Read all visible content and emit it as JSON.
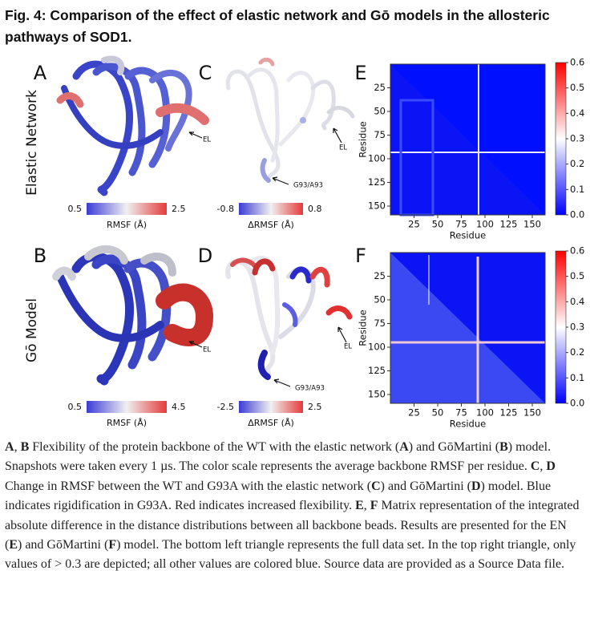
{
  "title": "Fig. 4: Comparison of the effect of elastic network and Gō models in the allosteric pathways of SOD1.",
  "row_labels": [
    "Elastic Network",
    "Gō Model"
  ],
  "panels": [
    {
      "letter": "A",
      "annotation": "EL",
      "colorbar": {
        "min": "0.5",
        "max": "2.5",
        "label": "RMSF (Å)"
      }
    },
    {
      "letter": "C",
      "annotation": "EL",
      "site": "G93/A93",
      "colorbar": {
        "min": "-0.8",
        "max": "0.8",
        "label": "ΔRMSF (Å)"
      }
    },
    {
      "letter": "B",
      "annotation": "EL",
      "colorbar": {
        "min": "0.5",
        "max": "4.5",
        "label": "RMSF (Å)"
      }
    },
    {
      "letter": "D",
      "annotation": "EL",
      "site": "G93/A93",
      "colorbar": {
        "min": "-2.5",
        "max": "2.5",
        "label": "ΔRMSF (Å)"
      }
    }
  ],
  "heatmaps": [
    {
      "letter": "E",
      "xlabel": "Residue",
      "ylabel": "Residue",
      "xticks": [
        "25",
        "50",
        "75",
        "100",
        "125",
        "150"
      ],
      "yticks": [
        "25",
        "50",
        "75",
        "100",
        "125",
        "150"
      ],
      "colorbar_ticks": [
        "0.0",
        "0.1",
        "0.2",
        "0.3",
        "0.4",
        "0.5",
        "0.6"
      ]
    },
    {
      "letter": "F",
      "xlabel": "Residue",
      "ylabel": "Residue",
      "xticks": [
        "25",
        "50",
        "75",
        "100",
        "125",
        "150"
      ],
      "yticks": [
        "25",
        "50",
        "75",
        "100",
        "125",
        "150"
      ],
      "colorbar_ticks": [
        "0.0",
        "0.1",
        "0.2",
        "0.3",
        "0.4",
        "0.5",
        "0.6"
      ]
    }
  ],
  "caption": [
    {
      "text": "A",
      "bold": true
    },
    {
      "text": ", "
    },
    {
      "text": "B",
      "bold": true
    },
    {
      "text": " Flexibility of the protein backbone of the WT with the elastic network ("
    },
    {
      "text": "A",
      "bold": true
    },
    {
      "text": ") and GōMartini ("
    },
    {
      "text": "B",
      "bold": true
    },
    {
      "text": ") model. Snapshots were taken every 1 µs. The color scale represents the average backbone RMSF per residue. "
    },
    {
      "text": "C",
      "bold": true
    },
    {
      "text": ", "
    },
    {
      "text": "D",
      "bold": true
    },
    {
      "text": " Change in RMSF between the WT and G93A with the elastic network ("
    },
    {
      "text": "C",
      "bold": true
    },
    {
      "text": ") and GōMartini ("
    },
    {
      "text": "D",
      "bold": true
    },
    {
      "text": ") model. Blue indicates rigidification in G93A. Red indicates increased flexibility. "
    },
    {
      "text": "E",
      "bold": true
    },
    {
      "text": ", "
    },
    {
      "text": "F",
      "bold": true
    },
    {
      "text": " Matrix representation of the integrated absolute difference in the distance distributions between all backbone beads. Results are presented for the EN ("
    },
    {
      "text": "E",
      "bold": true
    },
    {
      "text": ") and GōMartini ("
    },
    {
      "text": "F",
      "bold": true
    },
    {
      "text": ") model. The bottom left triangle represents the full data set. In the top right triangle, only values of > 0.3 are depicted; all other values are colored blue. Source data are provided as a Source Data file."
    }
  ]
}
